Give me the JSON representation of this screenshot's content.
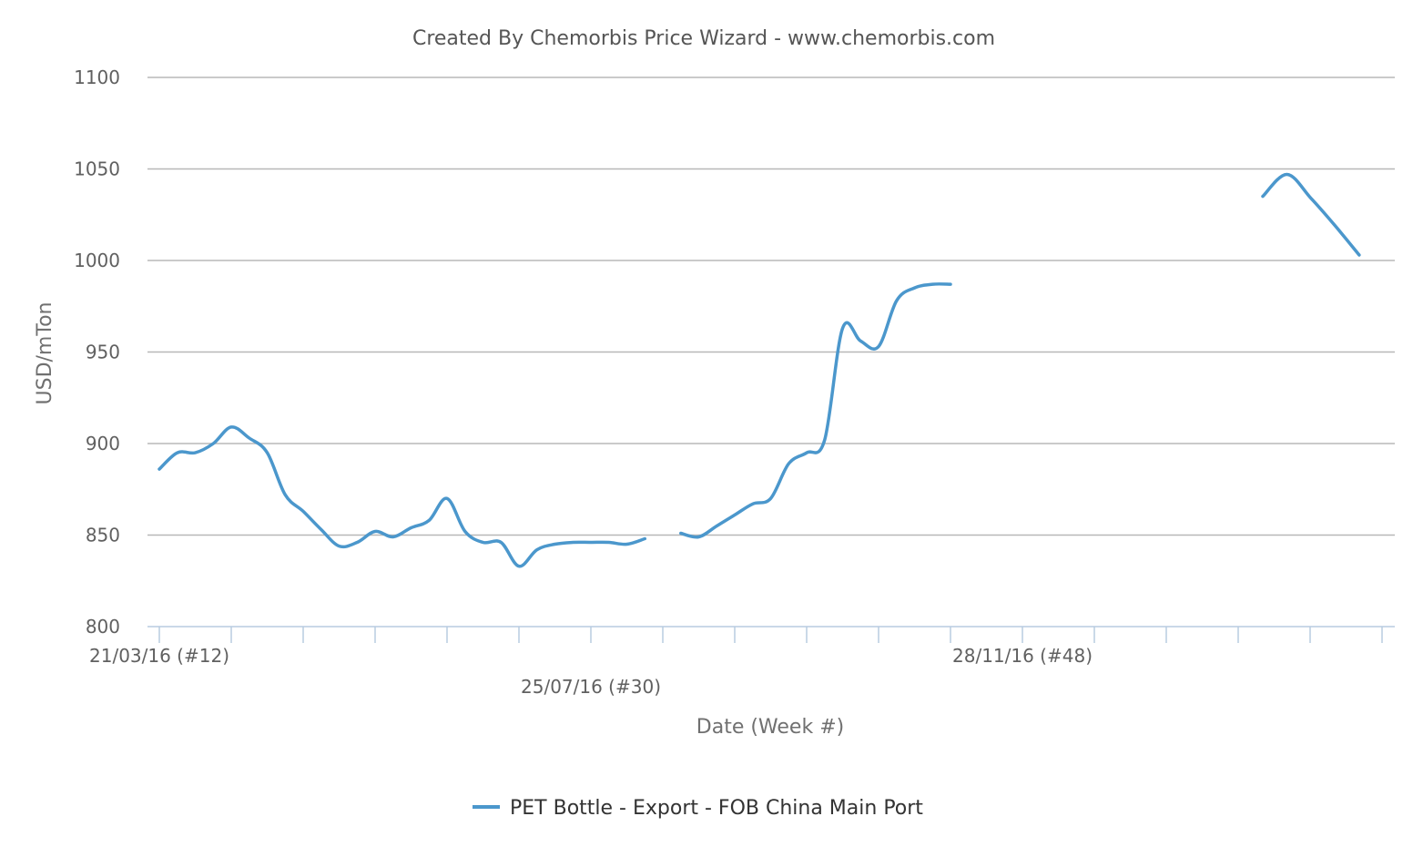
{
  "chart_data": {
    "type": "line",
    "title": "Created By Chemorbis Price Wizard - www.chemorbis.com",
    "xlabel": "Date (Week #)",
    "ylabel": "USD/mTon",
    "ylim": [
      800,
      1100
    ],
    "yticks": [
      800,
      850,
      900,
      950,
      1000,
      1050,
      1100
    ],
    "x_tick_labels": [
      "21/03/16 (#12)",
      "25/07/16 (#30)",
      "28/11/16 (#48)"
    ],
    "grid": true,
    "legend_position": "bottom-center",
    "series": [
      {
        "name": "PET Bottle - Export - FOB China Main Port",
        "color": "#4b97cc",
        "segments": [
          [
            886,
            895,
            895,
            900,
            909,
            903,
            895,
            872,
            863,
            853,
            844,
            846,
            852,
            849,
            854,
            858,
            870,
            852,
            846,
            846,
            833,
            842,
            845,
            846,
            846,
            846,
            845,
            848
          ],
          [
            851,
            849,
            855,
            861,
            867,
            870,
            889,
            895,
            902,
            963,
            956,
            953,
            978,
            985,
            987,
            987
          ],
          [
            1035,
            1047,
            1034,
            1019,
            1003
          ]
        ]
      }
    ]
  }
}
